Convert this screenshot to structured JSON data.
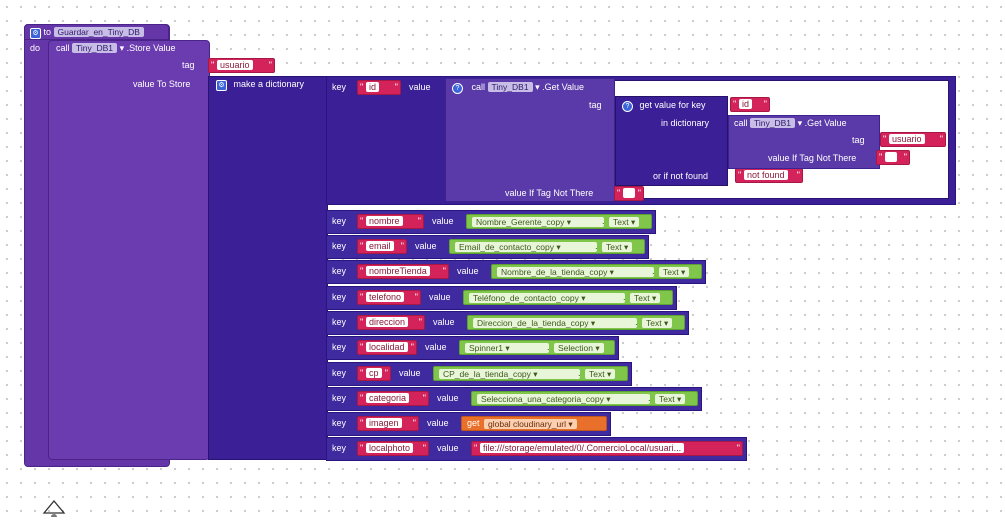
{
  "procedure": {
    "to_label": "to",
    "name": "Guardar_en_Tiny_DB",
    "do_label": "do"
  },
  "store": {
    "call_label": "call",
    "component": "Tiny_DB1",
    "method": ".Store Value",
    "tag_label": "tag",
    "tag_value": "usuario",
    "value_label": "value To Store"
  },
  "dictionary": {
    "label": "make a dictionary",
    "key_label": "key",
    "value_label": "value",
    "pairs": [
      {
        "key": "id"
      },
      {
        "key": "nombre",
        "comp": "Nombre_Gerente_copy",
        "prop": "Text"
      },
      {
        "key": "email",
        "comp": "Email_de_contacto_copy",
        "prop": "Text"
      },
      {
        "key": "nombreTienda",
        "comp": "Nombre_de_la_tienda_copy",
        "prop": "Text"
      },
      {
        "key": "telefono",
        "comp": "Teléfono_de_contacto_copy",
        "prop": "Text"
      },
      {
        "key": "direccion",
        "comp": "Direccion_de_la_tienda_copy",
        "prop": "Text"
      },
      {
        "key": "localidad",
        "comp": "Spinner1",
        "prop": "Selection"
      },
      {
        "key": "cp",
        "comp": "CP_de_la_tienda_copy",
        "prop": "Text"
      },
      {
        "key": "categoria",
        "comp": "Selecciona_una_categoria_copy",
        "prop": "Text"
      },
      {
        "key": "imagen",
        "get_label": "get",
        "global": "global cloudinary_url"
      },
      {
        "key": "localphoto",
        "str": "file:///storage/emulated/0/.ComercioLocal/usuari..."
      }
    ]
  },
  "getvalue": {
    "call_label": "call",
    "component": "Tiny_DB1",
    "method": ".Get Value",
    "tag_label": "tag",
    "iftag_label": "value If Tag Not There",
    "inner": {
      "label": "get value for key",
      "key": "id",
      "in_dict": "in dictionary",
      "notfound_label": "or if not found",
      "notfound_value": "not found"
    },
    "deep": {
      "call_label": "call",
      "component": "Tiny_DB1",
      "method": ".Get Value",
      "tag_label": "tag",
      "tag_value": "usuario",
      "iftag_label": "value If Tag Not There"
    }
  },
  "colors": {
    "procedure": "#6436a8",
    "dictionary": "#3a1f96",
    "text": "#d4235a",
    "component": "#7fc64a",
    "global": "#e8702a"
  },
  "icons": {
    "gear": "gear-icon",
    "help": "help-icon",
    "trash": "trash-icon"
  }
}
